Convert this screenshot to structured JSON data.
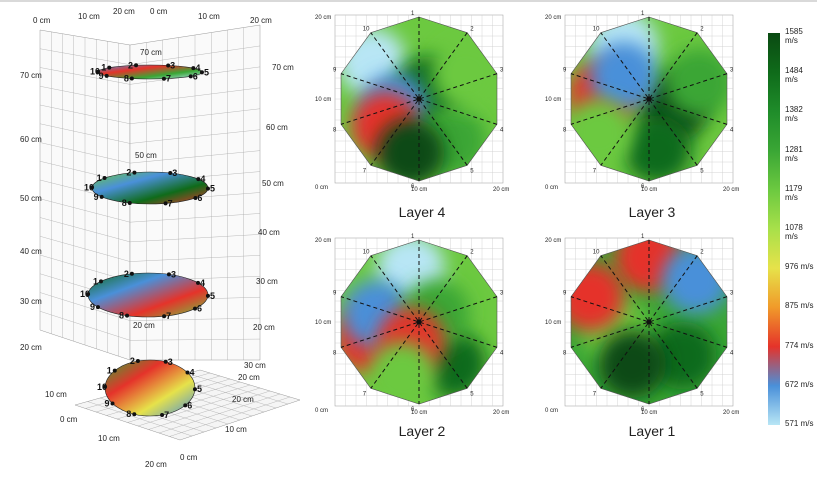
{
  "chart_data": [
    {
      "type": "other",
      "title": "",
      "axis_labels_x": [
        "0 cm",
        "10 cm",
        "20 cm",
        "0 cm",
        "10 cm",
        "20 cm"
      ],
      "axis_labels_z": [
        "20 cm",
        "30 cm",
        "40 cm",
        "50 cm",
        "60 cm",
        "70 cm"
      ],
      "layer_point_labels": [
        "1",
        "2",
        "3",
        "4",
        "5",
        "6",
        "7",
        "8",
        "9",
        "10"
      ]
    },
    {
      "type": "heatmap",
      "caption": "Layer 4",
      "axis_labels": [
        "0 cm",
        "10 cm",
        "20 cm",
        "10 cm",
        "20 cm"
      ],
      "sensor_labels": [
        "1",
        "2",
        "3",
        "4",
        "5",
        "6",
        "7",
        "8",
        "9",
        "10"
      ]
    },
    {
      "type": "heatmap",
      "caption": "Layer 3",
      "axis_labels": [
        "0 cm",
        "10 cm",
        "20 cm",
        "10 cm",
        "20 cm"
      ],
      "sensor_labels": [
        "1",
        "2",
        "3",
        "4",
        "5",
        "6",
        "7",
        "8",
        "9",
        "10"
      ]
    },
    {
      "type": "heatmap",
      "caption": "Layer 2",
      "axis_labels": [
        "0 cm",
        "10 cm",
        "20 cm",
        "10 cm",
        "20 cm"
      ],
      "sensor_labels": [
        "1",
        "2",
        "3",
        "4",
        "5",
        "6",
        "7",
        "8",
        "9",
        "10"
      ]
    },
    {
      "type": "heatmap",
      "caption": "Layer 1",
      "axis_labels": [
        "0 cm",
        "10 cm",
        "20 cm",
        "10 cm",
        "20 cm"
      ],
      "sensor_labels": [
        "1",
        "2",
        "3",
        "4",
        "5",
        "6",
        "7",
        "8",
        "9",
        "10"
      ]
    }
  ],
  "colorbar": {
    "ticks": [
      "1585 m/s",
      "1484 m/s",
      "1382 m/s",
      "1281 m/s",
      "1179 m/s",
      "1078 m/s",
      "976 m/s",
      "875 m/s",
      "774 m/s",
      "672 m/s",
      "571 m/s"
    ],
    "colors": [
      "#0a4a12",
      "#0f6b1a",
      "#1f8c2a",
      "#3aa635",
      "#6cc940",
      "#a8e04a",
      "#e6e24a",
      "#f09a2a",
      "#e5332a",
      "#4a90d9",
      "#b8e6f5"
    ]
  }
}
